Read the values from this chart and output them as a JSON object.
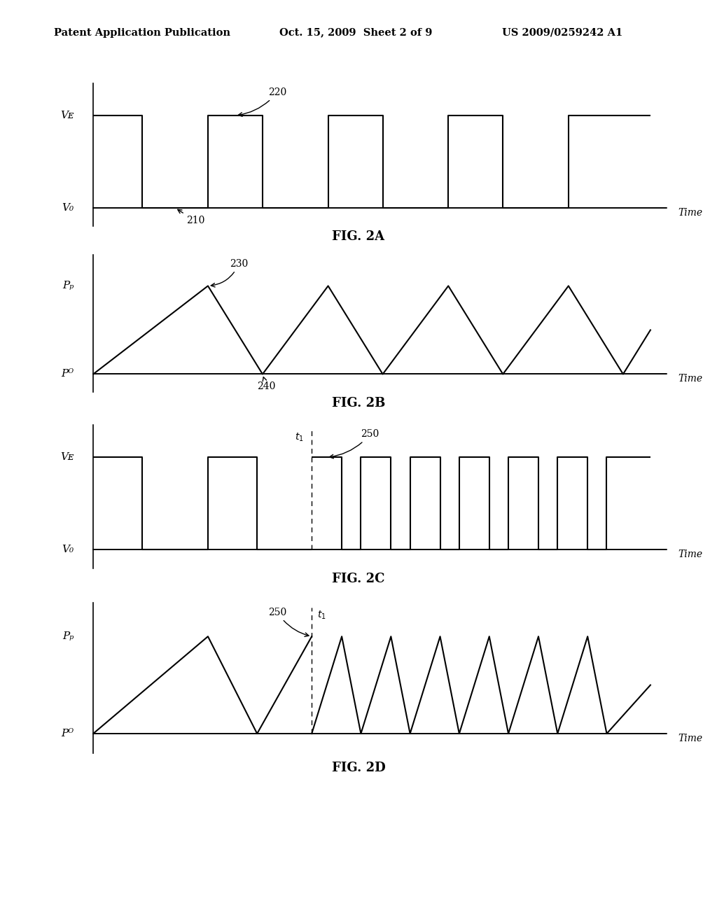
{
  "background_color": "#ffffff",
  "header_left": "Patent Application Publication",
  "header_mid": "Oct. 15, 2009  Sheet 2 of 9",
  "header_right": "US 2009/0259242 A1",
  "fig2a_label": "FIG. 2A",
  "fig2b_label": "FIG. 2B",
  "fig2c_label": "FIG. 2C",
  "fig2d_label": "FIG. 2D",
  "label_220": "220",
  "label_210": "210",
  "label_230": "230",
  "label_240": "240",
  "label_250_c": "250",
  "label_250_d": "250",
  "VE": "Vᴇ",
  "V0": "V₀",
  "PP": "Pₚ",
  "PR": "Pᴼ",
  "time_label": "Time",
  "line_color": "#000000",
  "line_width": 1.5
}
